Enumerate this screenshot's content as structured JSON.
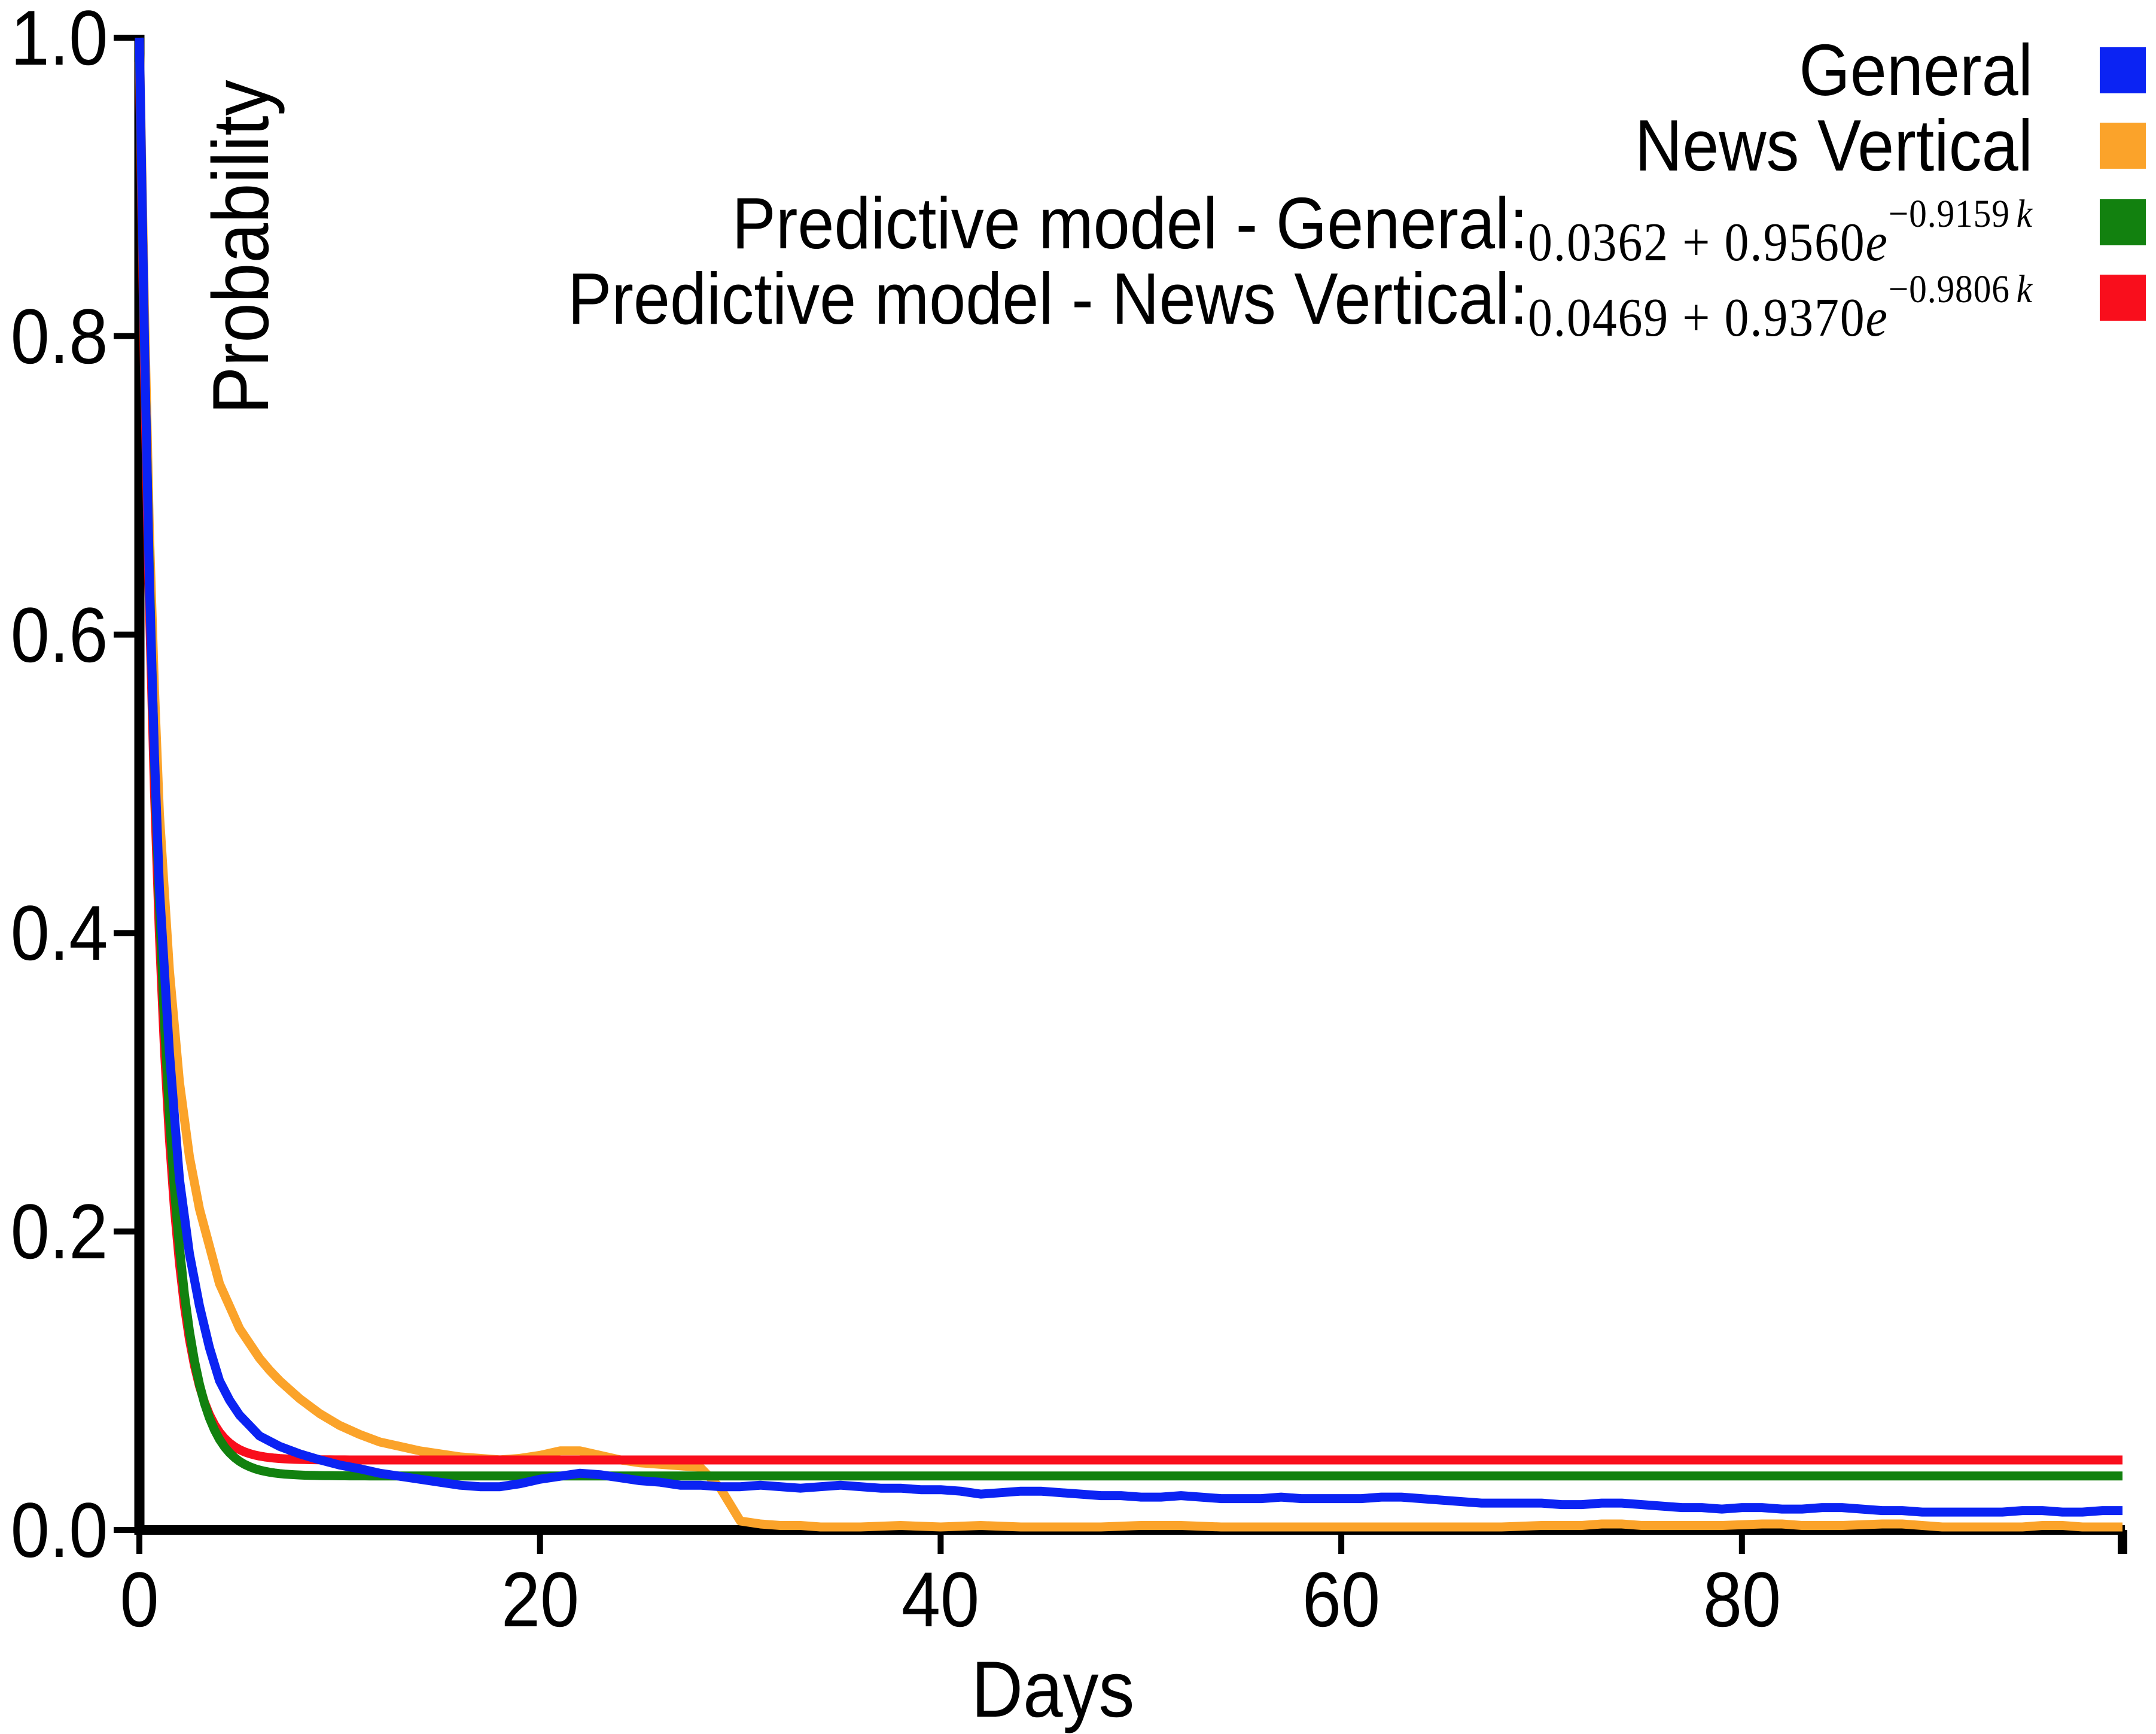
{
  "axes": {
    "ylabel": "Probability",
    "xlabel": "Days",
    "yticks": [
      "1.0",
      "0.8",
      "0.6",
      "0.4",
      "0.2",
      "0.0"
    ],
    "xticks": [
      "0",
      "20",
      "40",
      "60",
      "80"
    ]
  },
  "legend": {
    "items": [
      {
        "label": "General",
        "color": "#0b23f3"
      },
      {
        "label": "News Vertical",
        "color": "#fba32a"
      },
      {
        "label": "Predictive model - General:",
        "color": "#12810f",
        "formula": {
          "coeff": "0.0362 + 0.9560",
          "base": "e",
          "exp": "−0.9159",
          "var": "k"
        }
      },
      {
        "label": "Predictive model - News Vertical:",
        "color": "#f90e1c",
        "formula": {
          "coeff": "0.0469 + 0.9370",
          "base": "e",
          "exp": "−0.9806",
          "var": "k"
        }
      }
    ]
  },
  "chart_data": {
    "type": "line",
    "title": "",
    "xlabel": "Days",
    "ylabel": "Probability",
    "xlim": [
      0,
      99
    ],
    "ylim": [
      0.0,
      1.0
    ],
    "xticks": [
      0,
      20,
      40,
      60,
      80
    ],
    "yticks": [
      1.0,
      0.8,
      0.6,
      0.4,
      0.2,
      0.0
    ],
    "grid": false,
    "legend_position": "top-right",
    "series": [
      {
        "name": "General",
        "color": "#0b23f3",
        "kind": "empirical",
        "points": [
          [
            0,
            1.0
          ],
          [
            0.25,
            0.8
          ],
          [
            0.5,
            0.635
          ],
          [
            0.75,
            0.52
          ],
          [
            1,
            0.43
          ],
          [
            1.5,
            0.32
          ],
          [
            2,
            0.235
          ],
          [
            2.5,
            0.185
          ],
          [
            3,
            0.15
          ],
          [
            3.5,
            0.122
          ],
          [
            4,
            0.1
          ],
          [
            4.5,
            0.087
          ],
          [
            5,
            0.077
          ],
          [
            5.5,
            0.07
          ],
          [
            6,
            0.063
          ],
          [
            7,
            0.056
          ],
          [
            8,
            0.051
          ],
          [
            9,
            0.047
          ],
          [
            10,
            0.0435
          ],
          [
            11,
            0.041
          ],
          [
            12,
            0.038
          ],
          [
            13,
            0.036
          ],
          [
            14,
            0.034
          ],
          [
            15,
            0.032
          ],
          [
            16,
            0.03
          ],
          [
            17,
            0.029
          ],
          [
            18,
            0.029
          ],
          [
            19,
            0.031
          ],
          [
            20,
            0.034
          ],
          [
            21,
            0.036
          ],
          [
            22,
            0.038
          ],
          [
            23,
            0.037
          ],
          [
            24,
            0.035
          ],
          [
            25,
            0.033
          ],
          [
            26,
            0.032
          ],
          [
            27,
            0.03
          ],
          [
            28,
            0.03
          ],
          [
            29,
            0.029
          ],
          [
            30,
            0.029
          ],
          [
            31,
            0.03
          ],
          [
            32,
            0.029
          ],
          [
            33,
            0.028
          ],
          [
            34,
            0.029
          ],
          [
            35,
            0.03
          ],
          [
            36,
            0.029
          ],
          [
            37,
            0.028
          ],
          [
            38,
            0.028
          ],
          [
            39,
            0.027
          ],
          [
            40,
            0.027
          ],
          [
            41,
            0.026
          ],
          [
            42,
            0.024
          ],
          [
            43,
            0.025
          ],
          [
            44,
            0.026
          ],
          [
            45,
            0.026
          ],
          [
            46,
            0.025
          ],
          [
            47,
            0.024
          ],
          [
            48,
            0.023
          ],
          [
            49,
            0.023
          ],
          [
            50,
            0.022
          ],
          [
            51,
            0.022
          ],
          [
            52,
            0.023
          ],
          [
            53,
            0.022
          ],
          [
            54,
            0.021
          ],
          [
            55,
            0.021
          ],
          [
            56,
            0.021
          ],
          [
            57,
            0.022
          ],
          [
            58,
            0.021
          ],
          [
            59,
            0.021
          ],
          [
            60,
            0.021
          ],
          [
            61,
            0.021
          ],
          [
            62,
            0.022
          ],
          [
            63,
            0.022
          ],
          [
            64,
            0.021
          ],
          [
            65,
            0.02
          ],
          [
            66,
            0.019
          ],
          [
            67,
            0.018
          ],
          [
            68,
            0.018
          ],
          [
            69,
            0.018
          ],
          [
            70,
            0.018
          ],
          [
            71,
            0.017
          ],
          [
            72,
            0.017
          ],
          [
            73,
            0.018
          ],
          [
            74,
            0.018
          ],
          [
            75,
            0.017
          ],
          [
            76,
            0.016
          ],
          [
            77,
            0.015
          ],
          [
            78,
            0.015
          ],
          [
            79,
            0.014
          ],
          [
            80,
            0.015
          ],
          [
            81,
            0.015
          ],
          [
            82,
            0.014
          ],
          [
            83,
            0.014
          ],
          [
            84,
            0.015
          ],
          [
            85,
            0.015
          ],
          [
            86,
            0.014
          ],
          [
            87,
            0.013
          ],
          [
            88,
            0.013
          ],
          [
            89,
            0.012
          ],
          [
            90,
            0.012
          ],
          [
            91,
            0.012
          ],
          [
            92,
            0.012
          ],
          [
            93,
            0.012
          ],
          [
            94,
            0.013
          ],
          [
            95,
            0.013
          ],
          [
            96,
            0.012
          ],
          [
            97,
            0.012
          ],
          [
            98,
            0.013
          ],
          [
            99,
            0.013
          ]
        ]
      },
      {
        "name": "News Vertical",
        "color": "#fba32a",
        "kind": "empirical",
        "points": [
          [
            0,
            1.0
          ],
          [
            0.25,
            0.82
          ],
          [
            0.5,
            0.67
          ],
          [
            0.75,
            0.565
          ],
          [
            1,
            0.48
          ],
          [
            1.5,
            0.375
          ],
          [
            2,
            0.3
          ],
          [
            2.5,
            0.25
          ],
          [
            3,
            0.215
          ],
          [
            3.5,
            0.19
          ],
          [
            4,
            0.165
          ],
          [
            4.5,
            0.15
          ],
          [
            5,
            0.135
          ],
          [
            5.5,
            0.125
          ],
          [
            6,
            0.115
          ],
          [
            6.5,
            0.107
          ],
          [
            7,
            0.1
          ],
          [
            7.5,
            0.094
          ],
          [
            8,
            0.088
          ],
          [
            8.5,
            0.083
          ],
          [
            9,
            0.078
          ],
          [
            9.5,
            0.074
          ],
          [
            10,
            0.07
          ],
          [
            11,
            0.064
          ],
          [
            12,
            0.059
          ],
          [
            13,
            0.056
          ],
          [
            14,
            0.053
          ],
          [
            15,
            0.051
          ],
          [
            16,
            0.049
          ],
          [
            17,
            0.048
          ],
          [
            18,
            0.047
          ],
          [
            19,
            0.048
          ],
          [
            20,
            0.05
          ],
          [
            21,
            0.053
          ],
          [
            22,
            0.053
          ],
          [
            23,
            0.05
          ],
          [
            24,
            0.047
          ],
          [
            25,
            0.045
          ],
          [
            26,
            0.044
          ],
          [
            27,
            0.043
          ],
          [
            28,
            0.042
          ],
          [
            29,
            0.028
          ],
          [
            30,
            0.006
          ],
          [
            31,
            0.004
          ],
          [
            32,
            0.003
          ],
          [
            33,
            0.003
          ],
          [
            34,
            0.002
          ],
          [
            36,
            0.002
          ],
          [
            38,
            0.003
          ],
          [
            40,
            0.002
          ],
          [
            42,
            0.003
          ],
          [
            44,
            0.002
          ],
          [
            46,
            0.002
          ],
          [
            48,
            0.002
          ],
          [
            50,
            0.003
          ],
          [
            52,
            0.003
          ],
          [
            54,
            0.002
          ],
          [
            56,
            0.002
          ],
          [
            58,
            0.002
          ],
          [
            60,
            0.002
          ],
          [
            62,
            0.002
          ],
          [
            64,
            0.002
          ],
          [
            66,
            0.002
          ],
          [
            68,
            0.002
          ],
          [
            70,
            0.003
          ],
          [
            72,
            0.003
          ],
          [
            73,
            0.004
          ],
          [
            74,
            0.004
          ],
          [
            75,
            0.003
          ],
          [
            77,
            0.003
          ],
          [
            79,
            0.003
          ],
          [
            81,
            0.004
          ],
          [
            82,
            0.004
          ],
          [
            83,
            0.003
          ],
          [
            85,
            0.003
          ],
          [
            87,
            0.004
          ],
          [
            88,
            0.004
          ],
          [
            89,
            0.003
          ],
          [
            90,
            0.002
          ],
          [
            92,
            0.002
          ],
          [
            94,
            0.002
          ],
          [
            95,
            0.003
          ],
          [
            96,
            0.003
          ],
          [
            97,
            0.002
          ],
          [
            98,
            0.002
          ],
          [
            99,
            0.002
          ]
        ]
      },
      {
        "name": "Predictive model - General",
        "color": "#12810f",
        "kind": "model",
        "formula": "0.0362 + 0.9560e^(−0.9159k)",
        "params": {
          "c": 0.0362,
          "a": 0.956,
          "b": 0.9159
        }
      },
      {
        "name": "Predictive model - News Vertical",
        "color": "#f90e1c",
        "kind": "model",
        "formula": "0.0469 + 0.9370e^(−0.9806k)",
        "params": {
          "c": 0.0469,
          "a": 0.937,
          "b": 0.9806
        }
      }
    ],
    "draw_order": [
      1,
      3,
      2,
      0
    ]
  }
}
